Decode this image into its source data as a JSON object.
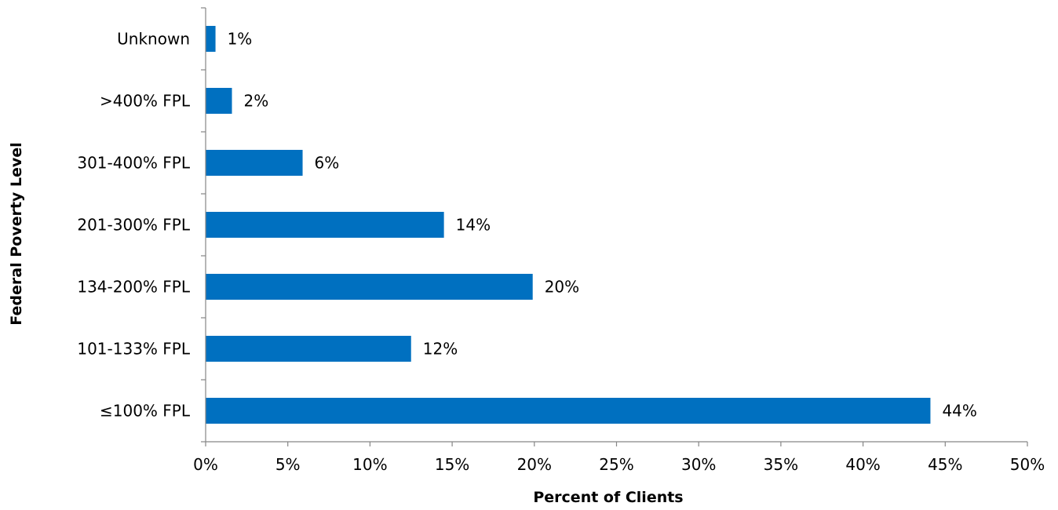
{
  "chart_data": {
    "type": "bar",
    "orientation": "horizontal",
    "categories": [
      "Unknown",
      ">400% FPL",
      "301-400% FPL",
      "201-300% FPL",
      "134-200% FPL",
      "101-133% FPL",
      "≤100% FPL"
    ],
    "values": [
      0.6,
      1.6,
      5.9,
      14.5,
      19.9,
      12.5,
      44.1
    ],
    "data_labels": [
      "1%",
      "2%",
      "6%",
      "14%",
      "20%",
      "12%",
      "44%"
    ],
    "xlabel": "Percent of Clients",
    "ylabel": "Federal Poverty Level",
    "xlim": [
      0,
      50
    ],
    "xticks": [
      0,
      5,
      10,
      15,
      20,
      25,
      30,
      35,
      40,
      45,
      50
    ],
    "xtick_labels": [
      "0%",
      "5%",
      "10%",
      "15%",
      "20%",
      "25%",
      "30%",
      "35%",
      "40%",
      "45%",
      "50%"
    ],
    "grid": false,
    "legend": "none",
    "bar_color": "#0070C0",
    "axis_color": "#868686"
  }
}
